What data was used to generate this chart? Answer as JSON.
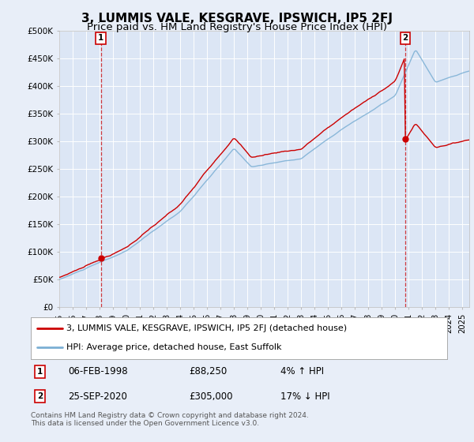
{
  "title": "3, LUMMIS VALE, KESGRAVE, IPSWICH, IP5 2FJ",
  "subtitle": "Price paid vs. HM Land Registry's House Price Index (HPI)",
  "ylim": [
    0,
    500000
  ],
  "yticks": [
    0,
    50000,
    100000,
    150000,
    200000,
    250000,
    300000,
    350000,
    400000,
    450000,
    500000
  ],
  "ytick_labels": [
    "£0",
    "£50K",
    "£100K",
    "£150K",
    "£200K",
    "£250K",
    "£300K",
    "£350K",
    "£400K",
    "£450K",
    "£500K"
  ],
  "xlim_start": 1995.0,
  "xlim_end": 2025.5,
  "xticks": [
    1995,
    1996,
    1997,
    1998,
    1999,
    2000,
    2001,
    2002,
    2003,
    2004,
    2005,
    2006,
    2007,
    2008,
    2009,
    2010,
    2011,
    2012,
    2013,
    2014,
    2015,
    2016,
    2017,
    2018,
    2019,
    2020,
    2021,
    2022,
    2023,
    2024,
    2025
  ],
  "background_color": "#e8eef8",
  "plot_bg_color": "#dce6f5",
  "grid_color": "#ffffff",
  "sale1_x": 1998.09,
  "sale1_y": 88250,
  "sale2_x": 2020.73,
  "sale2_y": 305000,
  "sale_color": "#cc0000",
  "hpi_color": "#7bafd4",
  "price_line_color": "#cc0000",
  "legend_label1": "3, LUMMIS VALE, KESGRAVE, IPSWICH, IP5 2FJ (detached house)",
  "legend_label2": "HPI: Average price, detached house, East Suffolk",
  "annotation1_date": "06-FEB-1998",
  "annotation1_price": "£88,250",
  "annotation1_hpi": "4% ↑ HPI",
  "annotation2_date": "25-SEP-2020",
  "annotation2_price": "£305,000",
  "annotation2_hpi": "17% ↓ HPI",
  "footnote": "Contains HM Land Registry data © Crown copyright and database right 2024.\nThis data is licensed under the Open Government Licence v3.0.",
  "title_fontsize": 11,
  "subtitle_fontsize": 9.5
}
